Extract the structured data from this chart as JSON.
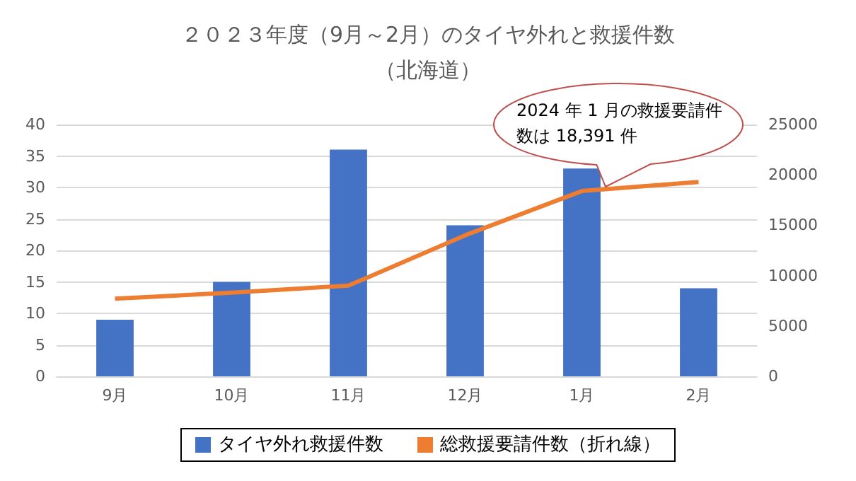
{
  "chart_data": {
    "type": "bar",
    "title": "２０２３年度（9月～2月）のタイヤ外れと救援件数",
    "subtitle": "（北海道）",
    "categories": [
      "9月",
      "10月",
      "11月",
      "12月",
      "1月",
      "2月"
    ],
    "series": [
      {
        "name": "タイヤ外れ救援件数",
        "color": "#4472c4",
        "values": [
          9,
          15,
          36,
          24,
          33,
          14
        ]
      },
      {
        "name": "総救援要請件数（折れ線）",
        "type": "line",
        "axis": "y2",
        "color": "#ed7d31",
        "marker": "none",
        "values": [
          7700,
          8300,
          9000,
          14000,
          18391,
          19300
        ]
      }
    ],
    "ylim": [
      0,
      40
    ],
    "yticks": [
      0,
      5,
      10,
      15,
      20,
      25,
      30,
      35,
      40
    ],
    "y2lim": [
      0,
      25000
    ],
    "y2ticks": [
      0,
      5000,
      10000,
      15000,
      20000,
      25000
    ],
    "annotations": [
      "2024 年 1 月の救援要請件数は 18,391 件"
    ],
    "grid": "y",
    "legend": "bottom"
  }
}
